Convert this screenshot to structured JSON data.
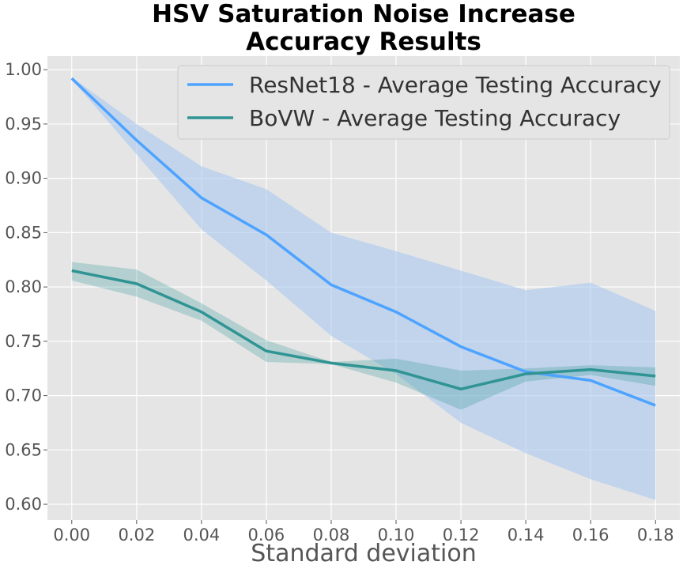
{
  "chart_data": {
    "type": "line",
    "title_lines": [
      "HSV Saturation Noise Increase",
      "Accuracy Results"
    ],
    "xlabel": "Standard deviation",
    "ylabel": "",
    "x": [
      0.0,
      0.02,
      0.04,
      0.06,
      0.08,
      0.1,
      0.12,
      0.14,
      0.16,
      0.18
    ],
    "x_tick_labels": [
      "0.00",
      "0.02",
      "0.04",
      "0.06",
      "0.08",
      "0.10",
      "0.12",
      "0.14",
      "0.16",
      "0.18"
    ],
    "y_ticks": [
      0.6,
      0.65,
      0.7,
      0.75,
      0.8,
      0.85,
      0.9,
      0.95,
      1.0
    ],
    "y_tick_labels": [
      "0.60",
      "0.65",
      "0.70",
      "0.75",
      "0.80",
      "0.85",
      "0.90",
      "0.95",
      "1.00"
    ],
    "xlim": [
      -0.0075,
      0.1875
    ],
    "ylim": [
      0.5855,
      1.0125
    ],
    "grid": true,
    "legend_position": "top-right",
    "series": [
      {
        "name": "ResNet18 - Average Testing Accuracy",
        "color": "#4da3ff",
        "band_color": "#a8c8ee",
        "values": [
          0.992,
          0.935,
          0.882,
          0.848,
          0.802,
          0.777,
          0.745,
          0.722,
          0.714,
          0.691
        ],
        "upper": [
          0.993,
          0.95,
          0.911,
          0.89,
          0.85,
          0.833,
          0.815,
          0.797,
          0.804,
          0.778
        ],
        "lower": [
          0.991,
          0.922,
          0.853,
          0.806,
          0.755,
          0.72,
          0.675,
          0.647,
          0.623,
          0.604
        ]
      },
      {
        "name": "BoVW - Average Testing Accuracy",
        "color": "#2f9493",
        "band_color": "#2f9493",
        "values": [
          0.815,
          0.803,
          0.777,
          0.741,
          0.73,
          0.723,
          0.706,
          0.72,
          0.724,
          0.718
        ],
        "upper": [
          0.823,
          0.816,
          0.785,
          0.751,
          0.731,
          0.734,
          0.723,
          0.725,
          0.728,
          0.726
        ],
        "lower": [
          0.806,
          0.791,
          0.769,
          0.731,
          0.729,
          0.712,
          0.687,
          0.713,
          0.719,
          0.709
        ]
      }
    ]
  }
}
